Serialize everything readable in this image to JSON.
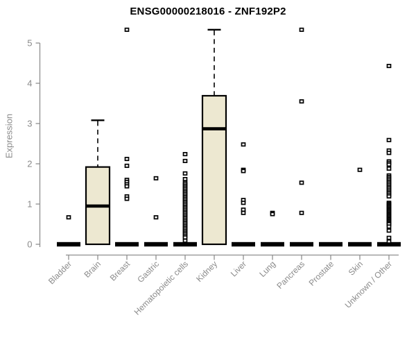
{
  "title": "ENSG00000218016 - ZNF192P2",
  "y_axis": {
    "label": "Expression",
    "ticks": [
      "0",
      "1",
      "2",
      "3",
      "4",
      "5"
    ]
  },
  "chart_data": {
    "type": "boxplot",
    "title": "ENSG00000218016 - ZNF192P2",
    "xlabel": "",
    "ylabel": "Expression",
    "ylim": [
      0,
      5.45
    ],
    "yticks": [
      0,
      1,
      2,
      3,
      4,
      5
    ],
    "grid": false,
    "legend": "none",
    "categories": [
      "Bladder",
      "Brain",
      "Breast",
      "Gastric",
      "Hematopoietic cells",
      "Kidney",
      "Liver",
      "Lung",
      "Pancreas",
      "Prostate",
      "Skin",
      "Unknown / Other"
    ],
    "boxes": [
      {
        "category": "Bladder",
        "q1": 0,
        "median": 0,
        "q3": 0,
        "whisker_low": 0,
        "whisker_high": 0,
        "outliers": [
          0.67
        ]
      },
      {
        "category": "Brain",
        "q1": 0,
        "median": 0.95,
        "q3": 1.92,
        "whisker_low": 0,
        "whisker_high": 3.08,
        "outliers": []
      },
      {
        "category": "Breast",
        "q1": 0,
        "median": 0,
        "q3": 0,
        "whisker_low": 0,
        "whisker_high": 0,
        "outliers": [
          5.33,
          2.12,
          1.95,
          1.6,
          1.55,
          1.49,
          1.44,
          1.19,
          1.13
        ]
      },
      {
        "category": "Gastric",
        "q1": 0,
        "median": 0,
        "q3": 0,
        "whisker_low": 0,
        "whisker_high": 0,
        "outliers": [
          1.64,
          0.67
        ]
      },
      {
        "category": "Hematopoietic cells",
        "q1": 0,
        "median": 0,
        "q3": 0,
        "whisker_low": 0,
        "whisker_high": 0,
        "outliers": [
          2.24,
          2.07,
          1.76,
          1.62,
          1.53,
          1.49,
          1.45,
          1.41,
          1.37,
          1.33,
          1.29,
          1.25,
          1.21,
          1.17,
          1.13,
          1.09,
          1.05,
          1.01,
          0.97,
          0.93,
          0.89,
          0.85,
          0.81,
          0.77,
          0.73,
          0.69,
          0.65,
          0.61,
          0.57,
          0.53,
          0.49,
          0.45,
          0.41,
          0.37,
          0.33,
          0.29,
          0.25,
          0.21,
          0.17,
          0.09
        ]
      },
      {
        "category": "Kidney",
        "q1": 0,
        "median": 2.87,
        "q3": 3.69,
        "whisker_low": 0,
        "whisker_high": 5.33,
        "outliers": []
      },
      {
        "category": "Liver",
        "q1": 0,
        "median": 0,
        "q3": 0,
        "whisker_low": 0,
        "whisker_high": 0,
        "outliers": [
          2.48,
          1.85,
          1.82,
          1.1,
          1.03,
          0.86,
          0.78
        ]
      },
      {
        "category": "Lung",
        "q1": 0,
        "median": 0,
        "q3": 0,
        "whisker_low": 0,
        "whisker_high": 0,
        "outliers": [
          0.78,
          0.75
        ]
      },
      {
        "category": "Pancreas",
        "q1": 0,
        "median": 0,
        "q3": 0,
        "whisker_low": 0,
        "whisker_high": 0,
        "outliers": [
          5.33,
          3.55,
          1.53,
          0.78
        ]
      },
      {
        "category": "Prostate",
        "q1": 0,
        "median": 0,
        "q3": 0,
        "whisker_low": 0,
        "whisker_high": 0,
        "outliers": []
      },
      {
        "category": "Skin",
        "q1": 0,
        "median": 0,
        "q3": 0,
        "whisker_low": 0,
        "whisker_high": 0,
        "outliers": [
          1.85
        ]
      },
      {
        "category": "Unknown / Other",
        "q1": 0,
        "median": 0,
        "q3": 0,
        "whisker_low": 0,
        "whisker_high": 0,
        "outliers": [
          4.43,
          2.59,
          2.33,
          2.27,
          2.06,
          2.02,
          1.98,
          1.88,
          1.71,
          1.67,
          1.63,
          1.59,
          1.55,
          1.51,
          1.47,
          1.43,
          1.39,
          1.35,
          1.31,
          1.27,
          1.23,
          1.19,
          1.03,
          1.0,
          0.97,
          0.94,
          0.91,
          0.88,
          0.85,
          0.82,
          0.79,
          0.76,
          0.73,
          0.7,
          0.67,
          0.64,
          0.61,
          0.58,
          0.55,
          0.52,
          0.5,
          0.44,
          0.34,
          0.16,
          0.07
        ]
      }
    ],
    "style": {
      "box_fill": "#EDE8D1",
      "box_stroke": "#000000",
      "median_color": "#000000",
      "whisker_color": "#000000",
      "outlier_color": "#000000",
      "axis_color": "#8F8F8F",
      "text_color": "#8A8A8A",
      "title_color": "#000000",
      "background": "#FFFFFF"
    }
  }
}
